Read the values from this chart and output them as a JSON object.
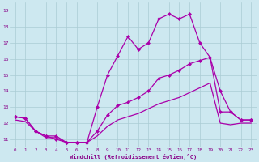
{
  "bg_color": "#cde8f0",
  "plot_bg": "#cde8f0",
  "line_color": "#aa00aa",
  "axis_bar_color": "#660066",
  "grid_color": "#aaccd4",
  "xlabel": "Windchill (Refroidissement éolien,°C)",
  "tick_color": "#880088",
  "xlim": [
    -0.5,
    23.5
  ],
  "ylim": [
    10.5,
    19.5
  ],
  "yticks": [
    11,
    12,
    13,
    14,
    15,
    16,
    17,
    18,
    19
  ],
  "xticks": [
    0,
    1,
    2,
    3,
    4,
    5,
    6,
    7,
    8,
    9,
    10,
    11,
    12,
    13,
    14,
    15,
    16,
    17,
    18,
    19,
    20,
    21,
    22,
    23
  ],
  "line1_x": [
    0,
    1,
    2,
    3,
    4,
    5,
    6,
    7,
    8,
    9,
    10,
    11,
    12,
    13,
    14,
    15,
    16,
    17,
    18,
    19,
    20,
    21,
    22,
    23
  ],
  "line1_y": [
    12.4,
    12.3,
    11.5,
    11.2,
    11.0,
    10.8,
    10.8,
    10.8,
    13.0,
    15.0,
    16.2,
    17.4,
    16.6,
    17.0,
    18.5,
    18.8,
    18.5,
    18.8,
    17.0,
    16.1,
    12.7,
    12.7,
    12.2,
    12.2
  ],
  "line2_x": [
    0,
    1,
    2,
    3,
    4,
    5,
    6,
    7,
    8,
    9,
    10,
    11,
    12,
    13,
    14,
    15,
    16,
    17,
    18,
    19,
    20,
    21,
    22,
    23
  ],
  "line2_y": [
    12.4,
    12.3,
    11.5,
    11.2,
    11.2,
    10.8,
    10.8,
    10.8,
    11.5,
    12.5,
    13.1,
    13.3,
    13.6,
    14.0,
    14.8,
    15.0,
    15.3,
    15.7,
    15.9,
    16.1,
    14.0,
    12.7,
    12.2,
    12.2
  ],
  "line3_x": [
    0,
    1,
    2,
    3,
    4,
    5,
    6,
    7,
    8,
    9,
    10,
    11,
    12,
    13,
    14,
    15,
    16,
    17,
    18,
    19,
    20,
    21,
    22,
    23
  ],
  "line3_y": [
    12.2,
    12.1,
    11.5,
    11.1,
    11.1,
    10.8,
    10.8,
    10.8,
    11.2,
    11.8,
    12.2,
    12.4,
    12.6,
    12.9,
    13.2,
    13.4,
    13.6,
    13.9,
    14.2,
    14.5,
    12.0,
    11.9,
    12.0,
    12.0
  ]
}
